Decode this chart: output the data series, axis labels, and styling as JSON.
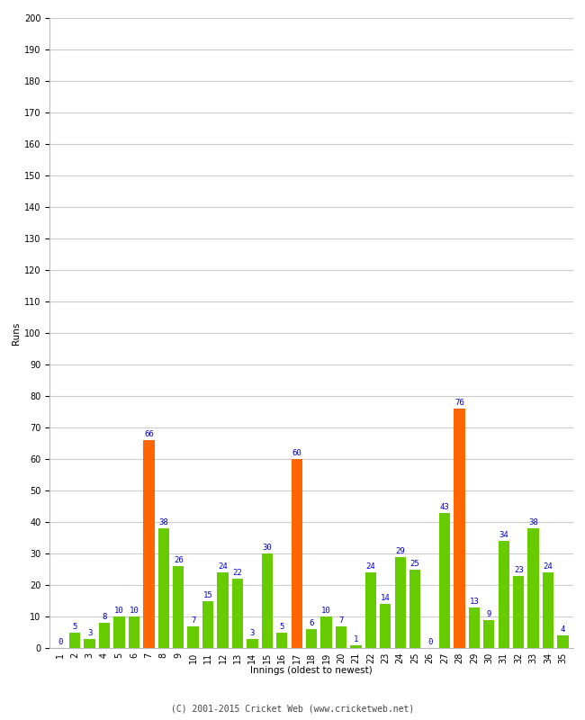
{
  "title": "",
  "xlabel": "Innings (oldest to newest)",
  "ylabel": "Runs",
  "values": [
    0,
    5,
    3,
    8,
    10,
    10,
    66,
    38,
    26,
    7,
    15,
    24,
    22,
    3,
    30,
    5,
    60,
    6,
    10,
    7,
    1,
    24,
    14,
    29,
    25,
    0,
    43,
    76,
    13,
    9,
    34,
    23,
    38,
    24,
    4
  ],
  "colors": [
    "#66cc00",
    "#66cc00",
    "#66cc00",
    "#66cc00",
    "#66cc00",
    "#66cc00",
    "#ff6600",
    "#66cc00",
    "#66cc00",
    "#66cc00",
    "#66cc00",
    "#66cc00",
    "#66cc00",
    "#66cc00",
    "#66cc00",
    "#66cc00",
    "#ff6600",
    "#66cc00",
    "#66cc00",
    "#66cc00",
    "#66cc00",
    "#66cc00",
    "#66cc00",
    "#66cc00",
    "#66cc00",
    "#66cc00",
    "#66cc00",
    "#ff6600",
    "#66cc00",
    "#66cc00",
    "#66cc00",
    "#66cc00",
    "#66cc00",
    "#66cc00",
    "#66cc00"
  ],
  "ylim": [
    0,
    200
  ],
  "yticks": [
    0,
    10,
    20,
    30,
    40,
    50,
    60,
    70,
    80,
    90,
    100,
    110,
    120,
    130,
    140,
    150,
    160,
    170,
    180,
    190,
    200
  ],
  "label_color": "#0000cc",
  "label_fontsize": 6.5,
  "axis_label_fontsize": 7.5,
  "tick_fontsize": 7,
  "background_color": "#ffffff",
  "grid_color": "#cccccc",
  "footer": "(C) 2001-2015 Cricket Web (www.cricketweb.net)"
}
